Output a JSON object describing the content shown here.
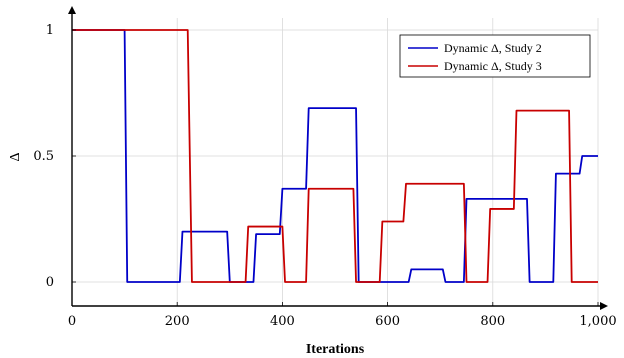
{
  "chart_data": {
    "type": "line",
    "title": "",
    "xlabel": "Iterations",
    "ylabel": "Δ",
    "xlim": [
      0,
      1000
    ],
    "ylim": [
      -0.05,
      1.05
    ],
    "x_ticks": [
      0,
      200,
      400,
      600,
      800,
      1000
    ],
    "x_tick_labels": [
      "0",
      "200",
      "400",
      "600",
      "800",
      "1,000"
    ],
    "y_ticks": [
      0,
      0.5,
      1
    ],
    "y_tick_labels": [
      "0",
      "0.5",
      "1"
    ],
    "grid": true,
    "legend_position": "top-right",
    "series": [
      {
        "name": "Dynamic Δ, Study 2",
        "color": "#0000c8",
        "points": [
          [
            0,
            1
          ],
          [
            100,
            1
          ],
          [
            105,
            0
          ],
          [
            205,
            0
          ],
          [
            210,
            0.2
          ],
          [
            295,
            0.2
          ],
          [
            300,
            0
          ],
          [
            345,
            0
          ],
          [
            350,
            0.19
          ],
          [
            395,
            0.19
          ],
          [
            400,
            0.37
          ],
          [
            445,
            0.37
          ],
          [
            450,
            0.69
          ],
          [
            540,
            0.69
          ],
          [
            545,
            0
          ],
          [
            640,
            0
          ],
          [
            645,
            0.05
          ],
          [
            705,
            0.05
          ],
          [
            710,
            0
          ],
          [
            745,
            0
          ],
          [
            750,
            0.33
          ],
          [
            865,
            0.33
          ],
          [
            870,
            0
          ],
          [
            915,
            0
          ],
          [
            920,
            0.43
          ],
          [
            965,
            0.43
          ],
          [
            970,
            0.5
          ],
          [
            1000,
            0.5
          ]
        ]
      },
      {
        "name": "Dynamic Δ, Study 3",
        "color": "#c80000",
        "points": [
          [
            0,
            1
          ],
          [
            220,
            1
          ],
          [
            228,
            0
          ],
          [
            330,
            0
          ],
          [
            335,
            0.22
          ],
          [
            400,
            0.22
          ],
          [
            405,
            0
          ],
          [
            445,
            0
          ],
          [
            450,
            0.37
          ],
          [
            535,
            0.37
          ],
          [
            540,
            0
          ],
          [
            585,
            0
          ],
          [
            590,
            0.24
          ],
          [
            630,
            0.24
          ],
          [
            635,
            0.39
          ],
          [
            745,
            0.39
          ],
          [
            750,
            0
          ],
          [
            790,
            0
          ],
          [
            795,
            0.29
          ],
          [
            840,
            0.29
          ],
          [
            845,
            0.68
          ],
          [
            945,
            0.68
          ],
          [
            950,
            0
          ],
          [
            1000,
            0
          ]
        ]
      }
    ]
  }
}
